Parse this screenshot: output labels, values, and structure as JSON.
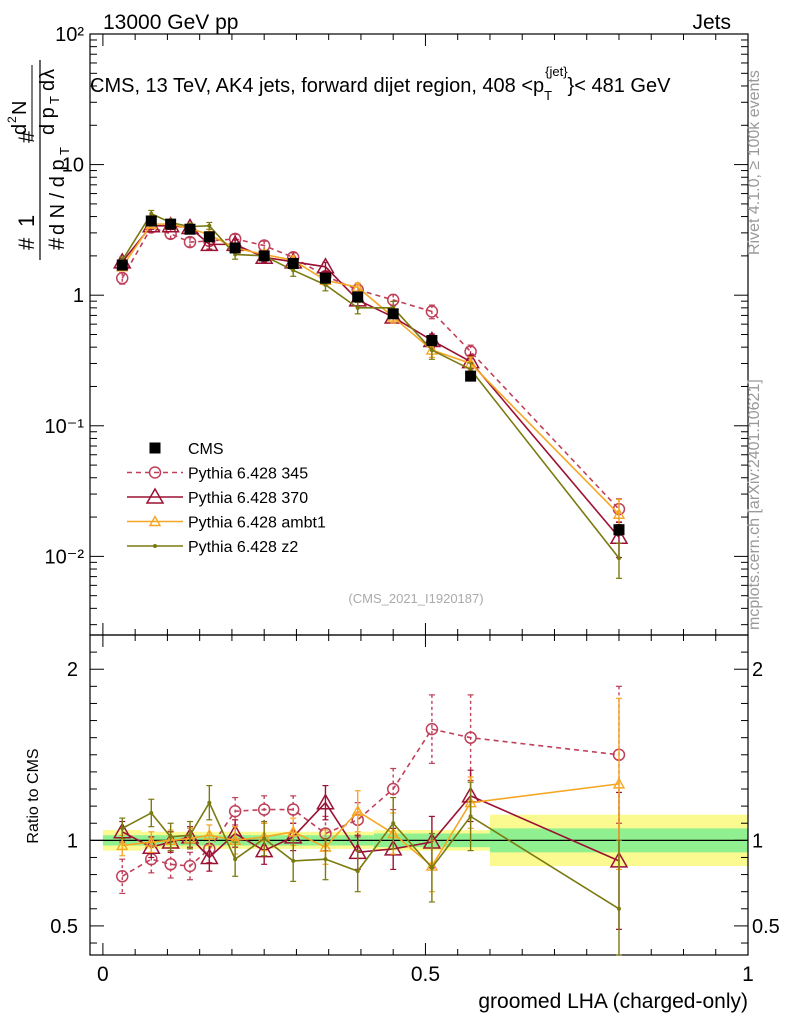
{
  "header": {
    "energy_label": "13000 GeV pp",
    "process_label": "Jets"
  },
  "side_labels": {
    "rivet": "Rivet 4.1.0, ≥ 100k events",
    "mcplots": "mcplots.cern.ch [arXiv:2401.10621]"
  },
  "watermark": "(CMS_2021_I1920187)",
  "chart_data": [
    {
      "type": "scatter",
      "panel": "main",
      "title": "CMS, 13 TeV, AK4 jets, forward dijet region, 408 < p_T^{jet} < 481 GeV",
      "title_parts": {
        "prefix": "CMS, 13 TeV, AK4 jets, forward dijet region, 408 <p",
        "sub": "T",
        "sup": "{jet}",
        "suffix": "}< 481 GeV"
      },
      "ylabel": "1/(dN/dp_T) d²N/(dp_T dλ)",
      "yscale": "log",
      "ylim": [
        0.0025,
        100
      ],
      "xlim": [
        -0.02,
        1.0
      ],
      "y_tick_labels": [
        "10²",
        "10",
        "1",
        "10⁻¹",
        "10⁻²"
      ],
      "legend_position": "lower-left",
      "series": [
        {
          "name": "CMS",
          "color": "#000000",
          "marker": "square",
          "x": [
            0.03,
            0.075,
            0.105,
            0.135,
            0.165,
            0.205,
            0.25,
            0.295,
            0.345,
            0.395,
            0.45,
            0.51,
            0.57,
            0.8
          ],
          "y": [
            1.7,
            3.7,
            3.5,
            3.2,
            2.8,
            2.3,
            2.0,
            1.75,
            1.35,
            0.97,
            0.72,
            0.45,
            0.24,
            0.016
          ],
          "err": [
            0.06,
            0.05,
            0.05,
            0.05,
            0.05,
            0.05,
            0.05,
            0.05,
            0.05,
            0.05,
            0.06,
            0.06,
            0.06,
            0.09
          ]
        },
        {
          "name": "Pythia 6.428 345",
          "color": "#c0405a",
          "marker": "open-circle",
          "dash": true,
          "x": [
            0.03,
            0.075,
            0.105,
            0.135,
            0.165,
            0.205,
            0.25,
            0.295,
            0.345,
            0.395,
            0.45,
            0.51,
            0.57,
            0.8
          ],
          "y": [
            1.35,
            3.3,
            2.95,
            2.55,
            2.6,
            2.7,
            2.4,
            1.95,
            1.4,
            1.1,
            0.92,
            0.75,
            0.37,
            0.023
          ],
          "err": [
            0.1,
            0.08,
            0.08,
            0.08,
            0.08,
            0.08,
            0.08,
            0.08,
            0.08,
            0.1,
            0.1,
            0.12,
            0.12,
            0.2
          ]
        },
        {
          "name": "Pythia 6.428 370",
          "color": "#9b1133",
          "marker": "open-triangle",
          "x": [
            0.03,
            0.075,
            0.105,
            0.135,
            0.165,
            0.205,
            0.25,
            0.295,
            0.345,
            0.395,
            0.45,
            0.51,
            0.57,
            0.8
          ],
          "y": [
            1.8,
            3.4,
            3.4,
            3.3,
            2.45,
            2.45,
            1.95,
            1.8,
            1.65,
            0.92,
            0.68,
            0.45,
            0.31,
            0.014
          ],
          "err": [
            0.06,
            0.06,
            0.06,
            0.06,
            0.08,
            0.08,
            0.08,
            0.08,
            0.08,
            0.1,
            0.1,
            0.12,
            0.12,
            0.3
          ]
        },
        {
          "name": "Pythia 6.428 ambt1",
          "color": "#f5a623",
          "marker": "open-triangle-small",
          "x": [
            0.03,
            0.075,
            0.105,
            0.135,
            0.165,
            0.205,
            0.25,
            0.295,
            0.345,
            0.395,
            0.45,
            0.51,
            0.57,
            0.8
          ],
          "y": [
            1.65,
            3.5,
            3.5,
            3.25,
            2.9,
            2.3,
            2.05,
            1.85,
            1.3,
            1.15,
            0.68,
            0.38,
            0.3,
            0.021
          ],
          "err": [
            0.06,
            0.06,
            0.06,
            0.06,
            0.06,
            0.08,
            0.08,
            0.08,
            0.08,
            0.08,
            0.1,
            0.12,
            0.12,
            0.3
          ]
        },
        {
          "name": "Pythia 6.428 z2",
          "color": "#7a7a10",
          "marker": "dot",
          "x": [
            0.03,
            0.075,
            0.105,
            0.135,
            0.165,
            0.205,
            0.25,
            0.295,
            0.345,
            0.395,
            0.45,
            0.51,
            0.57,
            0.8
          ],
          "y": [
            1.85,
            4.2,
            3.6,
            3.35,
            3.4,
            2.05,
            2.0,
            1.55,
            1.2,
            0.8,
            0.8,
            0.38,
            0.27,
            0.0097
          ],
          "err": [
            0.06,
            0.06,
            0.06,
            0.06,
            0.06,
            0.08,
            0.08,
            0.1,
            0.1,
            0.1,
            0.12,
            0.15,
            0.12,
            0.3
          ]
        }
      ]
    },
    {
      "type": "scatter",
      "panel": "ratio",
      "ylabel": "Ratio to CMS",
      "xlabel": "groomed LHA (charged-only)",
      "xlim": [
        -0.02,
        1.0
      ],
      "ylim": [
        0.33,
        2.2
      ],
      "x_ticks": [
        0,
        0.5,
        1
      ],
      "x_tick_labels": [
        "0",
        "0.5",
        "1"
      ],
      "y_ticks": [
        0.5,
        1,
        2
      ],
      "y_tick_labels": [
        "0.5",
        "1",
        "2"
      ],
      "uncertainty_bands": {
        "edges": [
          0.0,
          0.06,
          0.09,
          0.12,
          0.15,
          0.18,
          0.23,
          0.27,
          0.32,
          0.37,
          0.42,
          0.48,
          0.54,
          0.6,
          1.0
        ],
        "inner": [
          0.03,
          0.03,
          0.03,
          0.03,
          0.03,
          0.03,
          0.03,
          0.03,
          0.03,
          0.03,
          0.04,
          0.04,
          0.04,
          0.07
        ],
        "outer": [
          0.06,
          0.05,
          0.05,
          0.05,
          0.05,
          0.05,
          0.05,
          0.05,
          0.05,
          0.05,
          0.06,
          0.06,
          0.06,
          0.15
        ],
        "inner_color": "#90f090",
        "outer_color": "#fafa90"
      },
      "series": [
        {
          "name": "Pythia 6.428 345",
          "color": "#c0405a",
          "marker": "open-circle",
          "dash": true,
          "x": [
            0.03,
            0.075,
            0.105,
            0.135,
            0.165,
            0.205,
            0.25,
            0.295,
            0.345,
            0.395,
            0.45,
            0.51,
            0.57,
            0.8
          ],
          "y": [
            0.79,
            0.89,
            0.86,
            0.85,
            0.95,
            1.17,
            1.18,
            1.18,
            1.04,
            1.12,
            1.3,
            1.65,
            1.6,
            1.5
          ],
          "err": [
            0.1,
            0.08,
            0.08,
            0.08,
            0.08,
            0.08,
            0.08,
            0.08,
            0.1,
            0.1,
            0.12,
            0.2,
            0.25,
            0.4
          ]
        },
        {
          "name": "Pythia 6.428 370",
          "color": "#9b1133",
          "marker": "open-triangle",
          "x": [
            0.03,
            0.075,
            0.105,
            0.135,
            0.165,
            0.205,
            0.25,
            0.295,
            0.345,
            0.395,
            0.45,
            0.51,
            0.57,
            0.8
          ],
          "y": [
            1.05,
            0.96,
            0.99,
            1.02,
            0.9,
            1.04,
            0.94,
            1.02,
            1.22,
            0.93,
            0.95,
            0.99,
            1.26,
            0.88
          ],
          "err": [
            0.06,
            0.06,
            0.06,
            0.06,
            0.08,
            0.08,
            0.08,
            0.08,
            0.1,
            0.1,
            0.12,
            0.15,
            0.15,
            0.4
          ]
        },
        {
          "name": "Pythia 6.428 ambt1",
          "color": "#f5a623",
          "marker": "open-triangle-small",
          "x": [
            0.03,
            0.075,
            0.105,
            0.135,
            0.165,
            0.205,
            0.25,
            0.295,
            0.345,
            0.395,
            0.45,
            0.51,
            0.57,
            0.8
          ],
          "y": [
            0.97,
            0.99,
            1.0,
            1.01,
            1.03,
            1.0,
            1.02,
            1.05,
            0.96,
            1.17,
            1.04,
            0.85,
            1.22,
            1.33
          ],
          "err": [
            0.06,
            0.06,
            0.06,
            0.06,
            0.06,
            0.08,
            0.08,
            0.08,
            0.1,
            0.12,
            0.12,
            0.15,
            0.15,
            0.5
          ]
        },
        {
          "name": "Pythia 6.428 z2",
          "color": "#7a7a10",
          "marker": "dot",
          "x": [
            0.03,
            0.075,
            0.105,
            0.135,
            0.165,
            0.205,
            0.25,
            0.295,
            0.345,
            0.395,
            0.45,
            0.51,
            0.57,
            0.8
          ],
          "y": [
            1.07,
            1.16,
            1.02,
            1.03,
            1.22,
            0.89,
            1.01,
            0.88,
            0.89,
            0.82,
            1.1,
            0.84,
            1.14,
            0.6
          ],
          "err": [
            0.06,
            0.08,
            0.08,
            0.08,
            0.1,
            0.1,
            0.1,
            0.12,
            0.12,
            0.12,
            0.15,
            0.2,
            0.2,
            0.4
          ]
        }
      ]
    }
  ]
}
